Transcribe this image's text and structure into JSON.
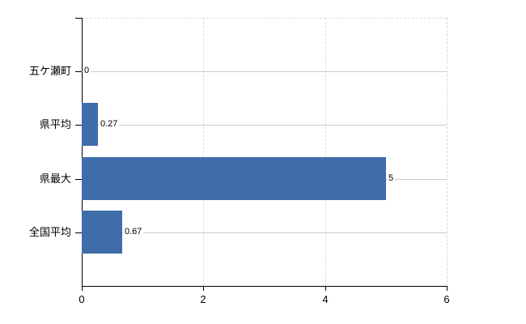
{
  "chart_data": {
    "type": "bar",
    "orientation": "horizontal",
    "title": "",
    "xlabel": "",
    "ylabel": "",
    "categories": [
      "五ケ瀬町",
      "県平均",
      "県最大",
      "全国平均"
    ],
    "values": [
      0,
      0.27,
      5,
      0.67
    ],
    "value_labels": [
      "0",
      "0.27",
      "5",
      "0.67"
    ],
    "xlim": [
      0,
      6
    ],
    "x_tick_values": [
      0,
      2,
      4,
      6
    ],
    "x_tick_labels": [
      "0",
      "2",
      "4",
      "6"
    ],
    "grid": true,
    "legend": false
  },
  "colors": {
    "bar": "#3e6da9",
    "axis": "#000000",
    "gridline_horizontal": "#cccccc",
    "gridline_vertical": "#d9d9d9",
    "text": "#000000",
    "background": "#ffffff"
  }
}
